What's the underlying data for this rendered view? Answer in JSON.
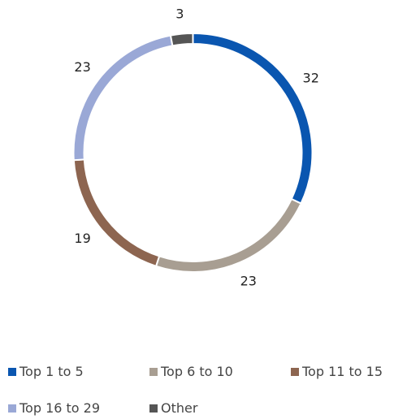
{
  "chart_data": {
    "type": "pie",
    "variant": "donut",
    "categories": [
      "Top 1 to 5",
      "Top 6 to 10",
      "Top 11 to 15",
      "Top 16 to 29",
      "Other"
    ],
    "values": [
      32,
      23,
      19,
      23,
      3
    ],
    "colors": [
      "#0a56b0",
      "#a89e92",
      "#8d6550",
      "#9aa8d6",
      "#555555"
    ],
    "legend_position": "bottom"
  },
  "legend": {
    "items": [
      {
        "label": "Top 1 to 5",
        "color": "#0a56b0"
      },
      {
        "label": "Top 6 to 10",
        "color": "#a89e92"
      },
      {
        "label": "Top 11 to 15",
        "color": "#8d6550"
      },
      {
        "label": "Top 16 to 29",
        "color": "#9aa8d6"
      },
      {
        "label": "Other",
        "color": "#555555"
      }
    ]
  }
}
